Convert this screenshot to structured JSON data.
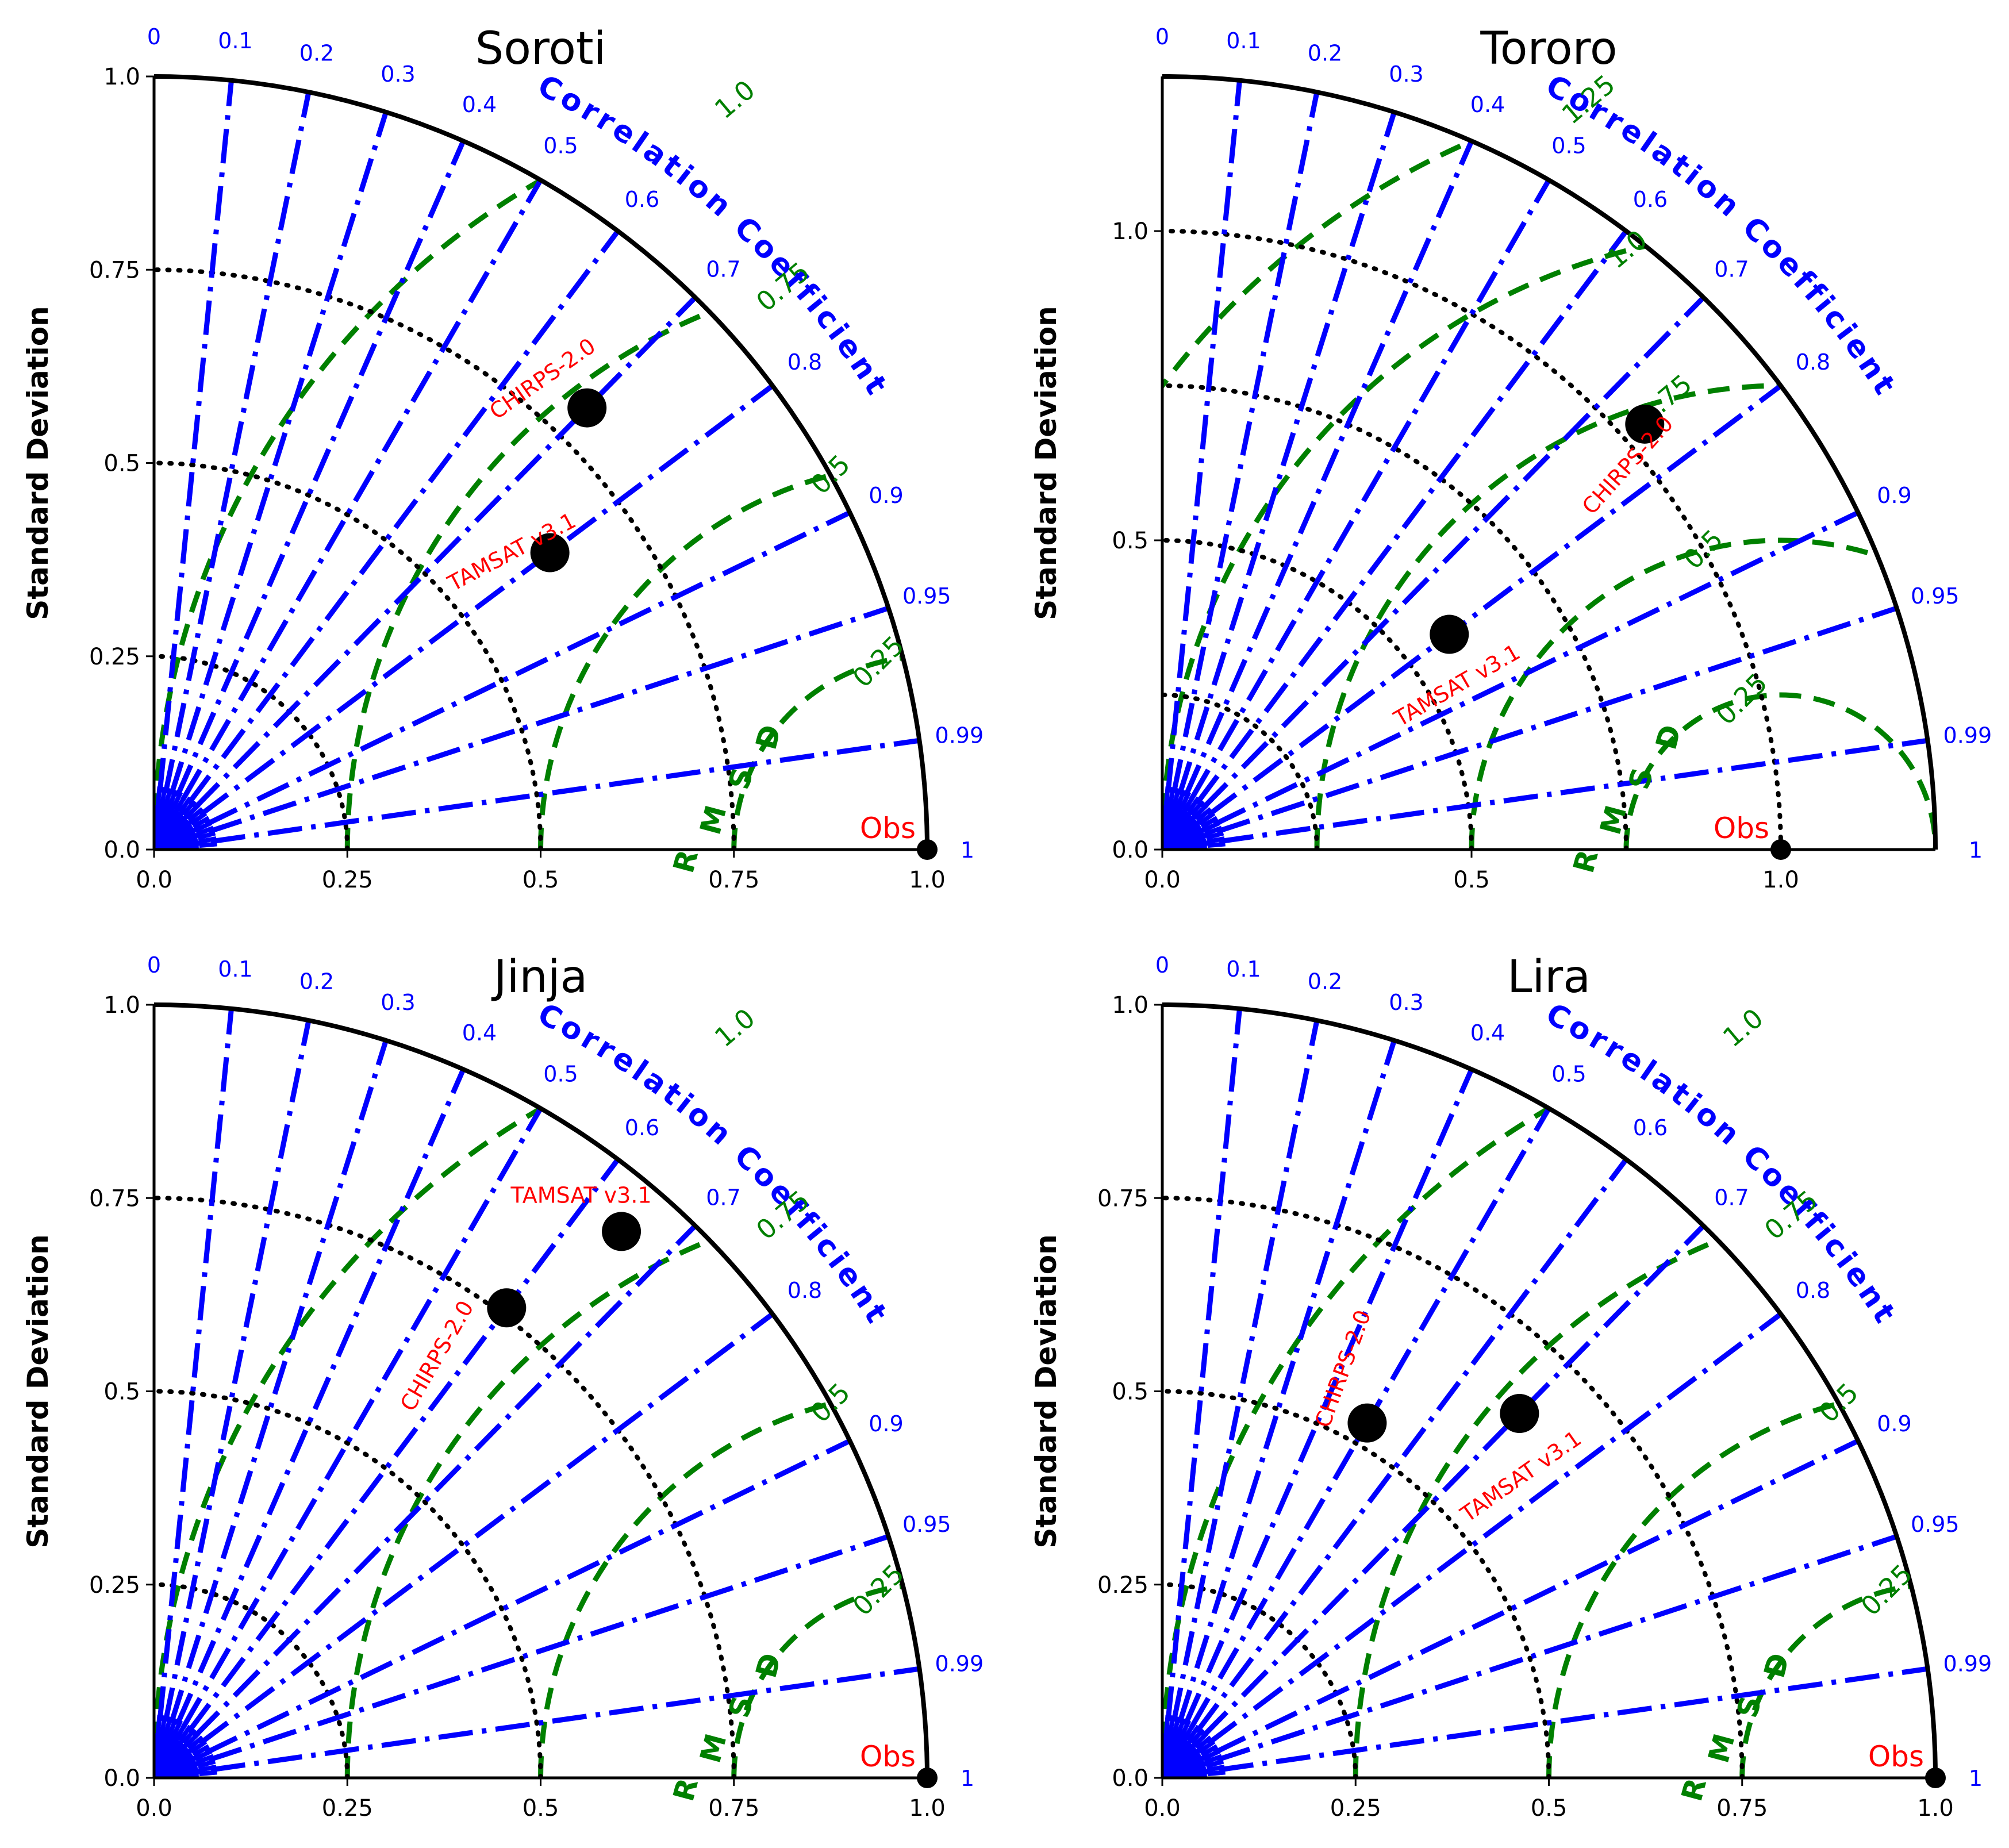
{
  "figure": {
    "y_axis_label": "Standard Deviation",
    "correlation_title": "Correlation Coefficient",
    "rmsd_title": "RMSD",
    "observation_label": "Obs",
    "colors": {
      "correlation": "#0000ff",
      "rmsd": "#008000",
      "std_grid": "#000000",
      "labels": "#ff0000",
      "markers": "#000000"
    }
  },
  "chart_data": [
    {
      "type": "taylor",
      "title": "Soroti",
      "ylabel": "Standard Deviation",
      "xlim": [
        0,
        1.0
      ],
      "ylim": [
        0,
        1.0
      ],
      "ticks": [
        0.0,
        0.25,
        0.5,
        0.75,
        1.0
      ],
      "tick_labels": [
        "0.0",
        "0.25",
        "0.5",
        "0.75",
        "1.0"
      ],
      "correlation_ticks": [
        0,
        0.1,
        0.2,
        0.3,
        0.4,
        0.5,
        0.6,
        0.7,
        0.8,
        0.9,
        0.95,
        0.99,
        1
      ],
      "correlation_tick_labels": [
        "0",
        "0.1",
        "0.2",
        "0.3",
        "0.4",
        "0.5",
        "0.6",
        "0.7",
        "0.8",
        "0.9",
        "0.95",
        "0.99",
        "1"
      ],
      "std_contours": [
        0.25,
        0.5,
        0.75
      ],
      "rmsd_contours": [
        0.25,
        0.5,
        0.75,
        1.0
      ],
      "rmsd_labels": [
        "0.25",
        "0.5",
        "0.75",
        "1.0"
      ],
      "reference": {
        "name": "Obs",
        "std": 1.0
      },
      "points": [
        {
          "name": "CHIRPS-2.0",
          "std": 0.8,
          "corr": 0.7
        },
        {
          "name": "TAMSAT v3.1",
          "std": 0.64,
          "corr": 0.8
        }
      ]
    },
    {
      "type": "taylor",
      "title": "Tororo",
      "ylabel": "Standard Deviation",
      "xlim": [
        0,
        1.25
      ],
      "ylim": [
        0,
        1.25
      ],
      "ticks": [
        0.0,
        0.5,
        1.0
      ],
      "tick_labels": [
        "0.0",
        "0.5",
        "1.0"
      ],
      "correlation_ticks": [
        0,
        0.1,
        0.2,
        0.3,
        0.4,
        0.5,
        0.6,
        0.7,
        0.8,
        0.9,
        0.95,
        0.99,
        1
      ],
      "correlation_tick_labels": [
        "0",
        "0.1",
        "0.2",
        "0.3",
        "0.4",
        "0.5",
        "0.6",
        "0.7",
        "0.8",
        "0.9",
        "0.95",
        "0.99",
        "1"
      ],
      "std_contours": [
        0.25,
        0.5,
        0.75,
        1.0
      ],
      "rmsd_contours": [
        0.25,
        0.5,
        0.75,
        1.0,
        1.25
      ],
      "rmsd_labels": [
        "0.25",
        "0.5",
        "0.75",
        "1.0",
        "1.25"
      ],
      "reference": {
        "name": "Obs",
        "std": 1.0
      },
      "points": [
        {
          "name": "CHIRPS-2.0",
          "std": 1.04,
          "corr": 0.75
        },
        {
          "name": "TAMSAT v3.1",
          "std": 0.58,
          "corr": 0.8
        }
      ]
    },
    {
      "type": "taylor",
      "title": "Jinja",
      "ylabel": "Standard Deviation",
      "xlim": [
        0,
        1.0
      ],
      "ylim": [
        0,
        1.0
      ],
      "ticks": [
        0.0,
        0.25,
        0.5,
        0.75,
        1.0
      ],
      "tick_labels": [
        "0.0",
        "0.25",
        "0.5",
        "0.75",
        "1.0"
      ],
      "correlation_ticks": [
        0,
        0.1,
        0.2,
        0.3,
        0.4,
        0.5,
        0.6,
        0.7,
        0.8,
        0.9,
        0.95,
        0.99,
        1
      ],
      "correlation_tick_labels": [
        "0",
        "0.1",
        "0.2",
        "0.3",
        "0.4",
        "0.5",
        "0.6",
        "0.7",
        "0.8",
        "0.9",
        "0.95",
        "0.99",
        "1"
      ],
      "std_contours": [
        0.25,
        0.5,
        0.75
      ],
      "rmsd_contours": [
        0.25,
        0.5,
        0.75,
        1.0
      ],
      "rmsd_labels": [
        "0.25",
        "0.5",
        "0.75",
        "1.0"
      ],
      "reference": {
        "name": "Obs",
        "std": 1.0
      },
      "points": [
        {
          "name": "CHIRPS-2.0",
          "std": 0.76,
          "corr": 0.6
        },
        {
          "name": "TAMSAT v3.1",
          "std": 0.93,
          "corr": 0.65
        }
      ]
    },
    {
      "type": "taylor",
      "title": "Lira",
      "ylabel": "Standard Deviation",
      "xlim": [
        0,
        1.0
      ],
      "ylim": [
        0,
        1.0
      ],
      "ticks": [
        0.0,
        0.25,
        0.5,
        0.75,
        1.0
      ],
      "tick_labels": [
        "0.0",
        "0.25",
        "0.5",
        "0.75",
        "1.0"
      ],
      "correlation_ticks": [
        0,
        0.1,
        0.2,
        0.3,
        0.4,
        0.5,
        0.6,
        0.7,
        0.8,
        0.9,
        0.95,
        0.99,
        1
      ],
      "correlation_tick_labels": [
        "0",
        "0.1",
        "0.2",
        "0.3",
        "0.4",
        "0.5",
        "0.6",
        "0.7",
        "0.8",
        "0.9",
        "0.95",
        "0.99",
        "1"
      ],
      "std_contours": [
        0.25,
        0.5,
        0.75
      ],
      "rmsd_contours": [
        0.25,
        0.5,
        0.75,
        1.0
      ],
      "rmsd_labels": [
        "0.25",
        "0.5",
        "0.75",
        "1.0"
      ],
      "reference": {
        "name": "Obs",
        "std": 1.0
      },
      "points": [
        {
          "name": "CHIRPS-2.0",
          "std": 0.53,
          "corr": 0.5
        },
        {
          "name": "TAMSAT v3.1",
          "std": 0.66,
          "corr": 0.7
        }
      ]
    }
  ]
}
